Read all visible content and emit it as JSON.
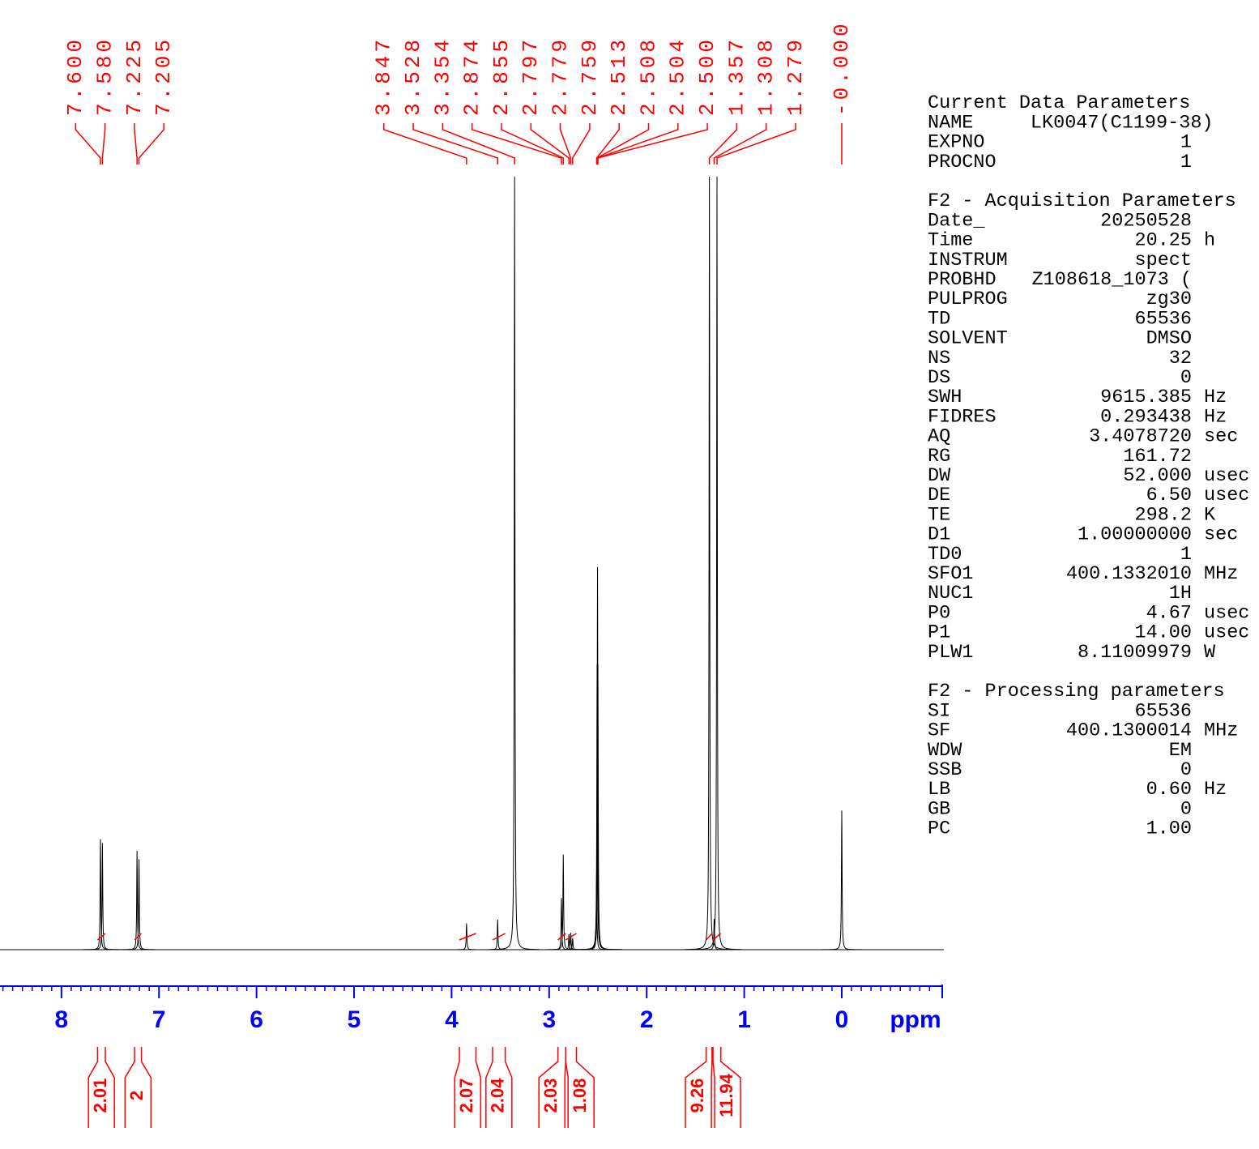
{
  "chart_data": {
    "type": "nmr",
    "x_label": "ppm",
    "xlim": [
      8.63,
      -1.03
    ],
    "xticks": [
      8,
      7,
      6,
      5,
      4,
      3,
      2,
      1,
      0
    ],
    "ylim": [
      0,
      100
    ],
    "axis_color": "#0000ff",
    "label_color": "#ff0000",
    "spectrum_color": "#000000",
    "peaks": [
      {
        "ppm": 7.6,
        "label": "7.600",
        "intensity": 14.3
      },
      {
        "ppm": 7.58,
        "label": "7.580",
        "intensity": 13.8
      },
      {
        "ppm": 7.225,
        "label": "7.225",
        "intensity": 12.8
      },
      {
        "ppm": 7.205,
        "label": "7.205",
        "intensity": 11.7
      },
      {
        "ppm": 3.847,
        "label": "3.847",
        "intensity": 3.4
      },
      {
        "ppm": 3.528,
        "label": "3.528",
        "intensity": 3.9
      },
      {
        "ppm": 3.354,
        "label": "3.354",
        "intensity": 100
      },
      {
        "ppm": 2.874,
        "label": "2.874",
        "intensity": 6.7
      },
      {
        "ppm": 2.855,
        "label": "2.855",
        "intensity": 12.3
      },
      {
        "ppm": 2.797,
        "label": "2.797",
        "intensity": 2.0
      },
      {
        "ppm": 2.779,
        "label": "2.779",
        "intensity": 2.2
      },
      {
        "ppm": 2.759,
        "label": "2.759",
        "intensity": 1.5
      },
      {
        "ppm": 2.513,
        "label": "2.513",
        "intensity": 10
      },
      {
        "ppm": 2.508,
        "label": "2.508",
        "intensity": 36.9
      },
      {
        "ppm": 2.504,
        "label": "2.504",
        "intensity": 49.5
      },
      {
        "ppm": 2.5,
        "label": "2.500",
        "intensity": 36.9
      },
      {
        "ppm": 1.357,
        "label": "1.357",
        "intensity": 100
      },
      {
        "ppm": 1.308,
        "label": "1.308",
        "intensity": 4
      },
      {
        "ppm": 1.279,
        "label": "1.279",
        "intensity": 100
      },
      {
        "ppm": 0,
        "label": "-0.000",
        "intensity": 18.0
      }
    ],
    "integrals": [
      {
        "from": 7.63,
        "to": 7.55,
        "value": 2.01
      },
      {
        "from": 7.25,
        "to": 7.18,
        "value": 2.0
      },
      {
        "from": 3.92,
        "to": 3.75,
        "value": 2.07
      },
      {
        "from": 3.58,
        "to": 3.45,
        "value": 2.04
      },
      {
        "from": 2.91,
        "to": 2.83,
        "value": 2.03
      },
      {
        "from": 2.83,
        "to": 2.72,
        "value": 1.08
      },
      {
        "from": 1.39,
        "to": 1.33,
        "value": 9.26
      },
      {
        "from": 1.32,
        "to": 1.24,
        "value": 11.94
      }
    ]
  },
  "parameters": [
    {
      "title": "Current Data Parameters",
      "rows": [
        [
          "NAME",
          "LK0047(C1199-38)"
        ],
        [
          "EXPNO",
          "1"
        ],
        [
          "PROCNO",
          "1"
        ]
      ]
    },
    {
      "title": "F2 - Acquisition Parameters",
      "rows": [
        [
          "Date_",
          "20250528"
        ],
        [
          "Time",
          "20.25",
          "h"
        ],
        [
          "INSTRUM",
          "spect"
        ],
        [
          "PROBHD",
          "Z108618_1073 ("
        ],
        [
          "PULPROG",
          "zg30"
        ],
        [
          "TD",
          "65536"
        ],
        [
          "SOLVENT",
          "DMSO"
        ],
        [
          "NS",
          "32"
        ],
        [
          "DS",
          "0"
        ],
        [
          "SWH",
          "9615.385",
          "Hz"
        ],
        [
          "FIDRES",
          "0.293438",
          "Hz"
        ],
        [
          "AQ",
          "3.4078720",
          "sec"
        ],
        [
          "RG",
          "161.72"
        ],
        [
          "DW",
          "52.000",
          "usec"
        ],
        [
          "DE",
          "6.50",
          "usec"
        ],
        [
          "TE",
          "298.2",
          "K"
        ],
        [
          "D1",
          "1.00000000",
          "sec"
        ],
        [
          "TD0",
          "1"
        ],
        [
          "SFO1",
          "400.1332010",
          "MHz"
        ],
        [
          "NUC1",
          "1H"
        ],
        [
          "P0",
          "4.67",
          "usec"
        ],
        [
          "P1",
          "14.00",
          "usec"
        ],
        [
          "PLW1",
          "8.11009979",
          "W"
        ]
      ]
    },
    {
      "title": "F2 - Processing parameters",
      "rows": [
        [
          "SI",
          "65536"
        ],
        [
          "SF",
          "400.1300014",
          "MHz"
        ],
        [
          "WDW",
          "EM"
        ],
        [
          "SSB",
          "0"
        ],
        [
          "LB",
          "0.60",
          "Hz"
        ],
        [
          "GB",
          "0"
        ],
        [
          "PC",
          "1.00"
        ]
      ]
    }
  ]
}
